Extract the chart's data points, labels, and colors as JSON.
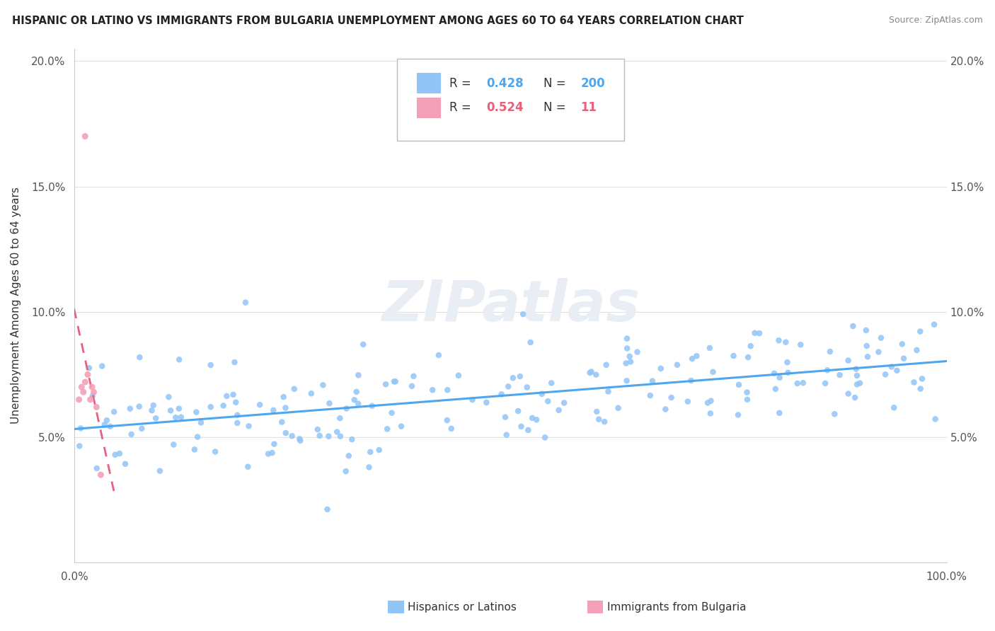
{
  "title": "HISPANIC OR LATINO VS IMMIGRANTS FROM BULGARIA UNEMPLOYMENT AMONG AGES 60 TO 64 YEARS CORRELATION CHART",
  "source": "Source: ZipAtlas.com",
  "ylabel": "Unemployment Among Ages 60 to 64 years",
  "legend_label1": "Hispanics or Latinos",
  "legend_label2": "Immigrants from Bulgaria",
  "R1": 0.428,
  "N1": 200,
  "R2": 0.524,
  "N2": 11,
  "color1": "#92c5f7",
  "color2": "#f4a0b8",
  "line1_color": "#4da6ee",
  "line2_color": "#e8607a",
  "watermark_color": "#e8eef4",
  "xlim": [
    0.0,
    1.0
  ],
  "ylim": [
    0.0,
    0.205
  ],
  "yticks": [
    0.05,
    0.1,
    0.15,
    0.2
  ],
  "yticklabels": [
    "5.0%",
    "10.0%",
    "15.0%",
    "20.0%"
  ],
  "seed": 42,
  "bg_color": "#ffffff",
  "grid_color": "#e0e0e0",
  "spine_color": "#cccccc",
  "tick_color": "#555555",
  "title_color": "#222222",
  "source_color": "#888888"
}
